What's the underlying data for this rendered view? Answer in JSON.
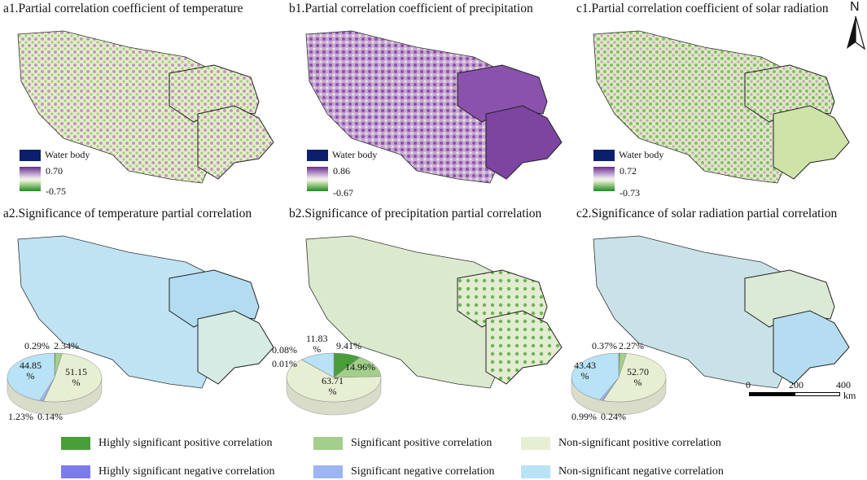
{
  "titles": {
    "a1": "a1.Partial correlation coefficient of temperature",
    "b1": "b1.Partial correlation coefficient of precipitation",
    "c1": "c1.Partial correlation coefficient of solar radiation",
    "a2": "a2.Significance of temperature partial correlation",
    "b2": "b2.Significance of precipitation partial correlation",
    "c2": "c2.Significance of solar radiation partial correlation"
  },
  "water_label": "Water body",
  "colorbars": {
    "a1": {
      "max": "0.70",
      "min": "-0.75"
    },
    "b1": {
      "max": "0.86",
      "min": "-0.67"
    },
    "c1": {
      "max": "0.72",
      "min": "-0.73"
    }
  },
  "pies": {
    "a2": {
      "hsp": "0.29%",
      "sp": "2.34%",
      "nsp": "51.15\n%",
      "nsn": "44.85\n%",
      "sn": "1.23%",
      "hsn": "0.14%",
      "values": {
        "hsp": 0.29,
        "sp": 2.34,
        "nsp": 51.15,
        "hsn": 0.14,
        "sn": 1.23,
        "nsn": 44.85
      }
    },
    "b2": {
      "hsp": "9.41%",
      "sp": "14.96%",
      "nsp": "63.71\n%",
      "nsn": "11.83\n%",
      "sn": "0.08%",
      "hsn": "0.01%",
      "values": {
        "hsp": 9.41,
        "sp": 14.96,
        "nsp": 63.71,
        "hsn": 0.01,
        "sn": 0.08,
        "nsn": 11.83
      }
    },
    "c2": {
      "hsp": "0.37%",
      "sp": "2.27%",
      "nsp": "52.70\n%",
      "nsn": "43.43\n%",
      "sn": "0.99%",
      "hsn": "0.24%",
      "values": {
        "hsp": 0.37,
        "sp": 2.27,
        "nsp": 52.7,
        "hsn": 0.24,
        "sn": 0.99,
        "nsn": 43.43
      }
    }
  },
  "legend": {
    "hsp": "Highly significant positive correlation",
    "sp": "Significant positive correlation",
    "nsp": "Non-significant positive correlation",
    "hsn": "Highly significant negative correlation",
    "sn": "Significant negative correlation",
    "nsn": "Non-significant negative correlation"
  },
  "colors": {
    "hsp": "#4a9e3a",
    "sp": "#a3cf8a",
    "nsp": "#e7efd3",
    "hsn": "#7b7bea",
    "sn": "#9bb6f2",
    "nsn": "#b8e2f5",
    "purple": "#8a4fa8",
    "green": "#4aa33a",
    "water": "#0b1f6e"
  },
  "north": "N",
  "scale": {
    "t0": "0",
    "t1": "200",
    "t2": "400",
    "unit": "km"
  }
}
